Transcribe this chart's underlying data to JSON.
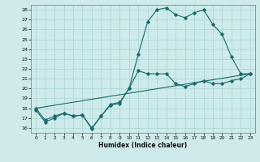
{
  "xlabel": "Humidex (Indice chaleur)",
  "bg_color": "#ceeaea",
  "line_color": "#1a6b6b",
  "grid_color": "#aad4d4",
  "xlim": [
    -0.5,
    23.5
  ],
  "ylim": [
    15.5,
    28.5
  ],
  "xticks": [
    0,
    1,
    2,
    3,
    4,
    5,
    6,
    7,
    8,
    9,
    10,
    11,
    12,
    13,
    14,
    15,
    16,
    17,
    18,
    19,
    20,
    21,
    22,
    23
  ],
  "yticks": [
    16,
    17,
    18,
    19,
    20,
    21,
    22,
    23,
    24,
    25,
    26,
    27,
    28
  ],
  "line1_x": [
    0,
    1,
    2,
    3,
    4,
    5,
    6,
    7,
    8,
    9,
    10,
    11,
    12,
    13,
    14,
    15,
    16,
    17,
    18,
    19,
    20,
    21,
    22,
    23
  ],
  "line1_y": [
    18.0,
    16.8,
    17.2,
    17.5,
    17.2,
    17.3,
    16.0,
    17.2,
    18.3,
    18.5,
    20.0,
    23.5,
    26.8,
    28.0,
    28.2,
    27.5,
    27.2,
    27.7,
    28.0,
    26.5,
    25.5,
    23.2,
    21.5,
    21.5
  ],
  "line2_x": [
    0,
    23
  ],
  "line2_y": [
    18.0,
    21.5
  ],
  "line3_x": [
    0,
    1,
    2,
    3,
    4,
    5,
    6,
    7,
    8,
    9,
    10,
    11,
    12,
    13,
    14,
    15,
    16,
    17,
    18,
    19,
    20,
    21,
    22,
    23
  ],
  "line3_y": [
    17.8,
    16.6,
    17.0,
    17.5,
    17.2,
    17.3,
    15.9,
    17.2,
    18.4,
    18.6,
    20.0,
    21.8,
    21.5,
    21.5,
    21.5,
    20.5,
    20.2,
    20.5,
    20.8,
    20.5,
    20.5,
    20.8,
    21.0,
    21.5
  ]
}
